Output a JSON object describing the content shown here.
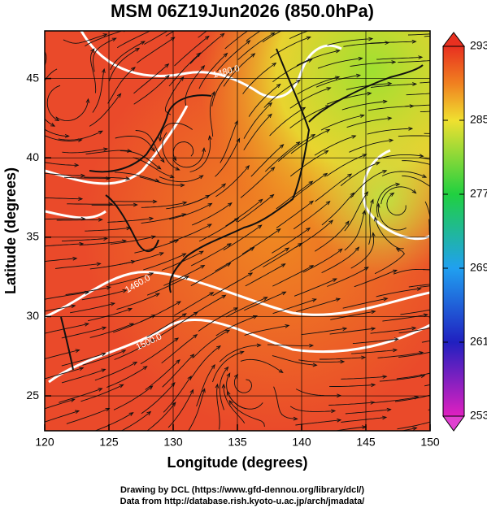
{
  "title": "MSM 06Z19Jun2026 (850.0hPa)",
  "x_axis": {
    "label": "Longitude (degrees)",
    "lim": [
      120,
      150
    ],
    "ticks": [
      120,
      125,
      130,
      135,
      140,
      145,
      150
    ]
  },
  "y_axis": {
    "label": "Latitude  (degrees)",
    "lim": [
      22.8,
      48
    ],
    "ticks": [
      25,
      30,
      35,
      40,
      45
    ]
  },
  "colorbar": {
    "lim": [
      253,
      293
    ],
    "ticks": [
      253,
      261,
      269,
      277,
      285,
      293
    ]
  },
  "contour_labels": [
    "1480.0",
    "1460.0",
    "1500.0"
  ],
  "credits": [
    "Drawing by DCL (https://www.gfd-dennou.org/library/dcl/)",
    "Data from http://database.rish.kyoto-u.ac.jp/arch/jmadata/"
  ]
}
